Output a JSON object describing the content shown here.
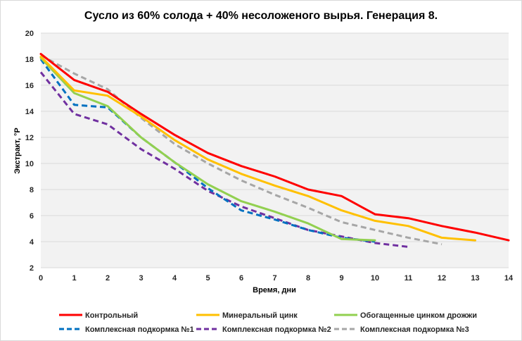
{
  "chart_data": {
    "type": "line",
    "title": "Сусло из 60% солода + 40% несоложеного вырья. Генерация 8.",
    "xlabel": "Время, дни",
    "ylabel": "Экстракт, °P",
    "xlim": [
      0,
      14
    ],
    "ylim": [
      2,
      20
    ],
    "x_ticks": [
      "0",
      "1",
      "2",
      "3",
      "4",
      "5",
      "6",
      "7",
      "8",
      "9",
      "10",
      "11",
      "12",
      "13",
      "14"
    ],
    "y_ticks": [
      "2",
      "4",
      "6",
      "8",
      "10",
      "12",
      "14",
      "16",
      "18",
      "20"
    ],
    "grid": "horizontal",
    "legend_position": "bottom",
    "series": [
      {
        "name": "Контрольный",
        "color": "#ff0000",
        "dash": "solid",
        "x": [
          0,
          1,
          2,
          3,
          4,
          5,
          6,
          7,
          8,
          9,
          10,
          11,
          12,
          13,
          14
        ],
        "values": [
          18.4,
          16.4,
          15.5,
          13.8,
          12.2,
          10.8,
          9.8,
          9.0,
          8.0,
          7.5,
          6.1,
          5.8,
          5.2,
          4.7,
          4.1
        ]
      },
      {
        "name": "Минеральный цинк",
        "color": "#ffc000",
        "dash": "solid",
        "x": [
          0,
          1,
          2,
          3,
          4,
          5,
          6,
          7,
          8,
          9,
          10,
          11,
          12,
          13
        ],
        "values": [
          18.2,
          15.6,
          15.2,
          13.6,
          11.8,
          10.3,
          9.2,
          8.3,
          7.5,
          6.4,
          5.6,
          5.2,
          4.3,
          4.1
        ]
      },
      {
        "name": "Обогащенные цинком дрожжи",
        "color": "#92d050",
        "dash": "solid",
        "x": [
          0,
          1,
          2,
          3,
          4,
          5,
          6,
          7,
          8,
          9,
          10
        ],
        "values": [
          18.1,
          15.4,
          14.4,
          12.0,
          10.1,
          8.4,
          7.1,
          6.3,
          5.4,
          4.2,
          4.1
        ]
      },
      {
        "name": "Комплексная подкормка №1",
        "color": "#0070c0",
        "dash": "dash",
        "x": [
          0,
          1,
          2,
          3,
          4,
          5,
          6,
          7,
          8,
          9,
          10
        ],
        "values": [
          18.0,
          14.5,
          14.3,
          12.0,
          10.1,
          8.1,
          6.4,
          5.7,
          4.9,
          4.3,
          4.0
        ]
      },
      {
        "name": "Комплексная подкормка №2",
        "color": "#7030a0",
        "dash": "dash",
        "x": [
          0,
          1,
          2,
          3,
          4,
          5,
          6,
          7,
          8,
          9,
          10,
          11
        ],
        "values": [
          17.0,
          13.8,
          13.0,
          11.1,
          9.6,
          7.9,
          6.7,
          5.8,
          4.9,
          4.4,
          3.9,
          3.6
        ]
      },
      {
        "name": "Комплексная подкормка №3",
        "color": "#a6a6a6",
        "dash": "dash",
        "x": [
          0,
          1,
          2,
          3,
          4,
          5,
          6,
          7,
          8,
          9,
          10,
          11,
          12
        ],
        "values": [
          18.3,
          16.9,
          15.7,
          13.5,
          11.5,
          10.0,
          8.7,
          7.6,
          6.6,
          5.5,
          4.9,
          4.3,
          3.8
        ]
      }
    ]
  }
}
